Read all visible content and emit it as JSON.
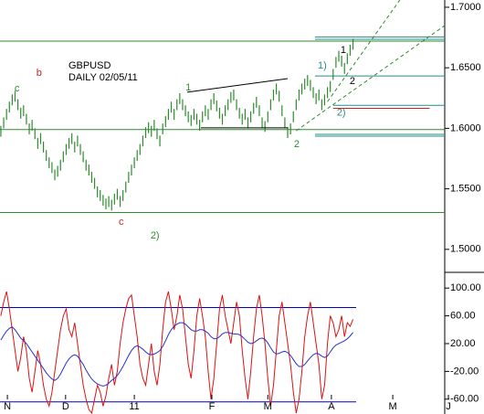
{
  "chart_data": [
    {
      "type": "hilo",
      "xlim": [
        -0.3,
        156.3
      ],
      "ylim": [
        1.481,
        1.706
      ],
      "yticks": [
        {
          "value": 1.7,
          "label": "1.7000"
        },
        {
          "value": 1.65,
          "label": "1.6500"
        },
        {
          "value": 1.6,
          "label": "1.6000"
        },
        {
          "value": 1.55,
          "label": "1.5500"
        },
        {
          "value": 1.5,
          "label": "1.5000"
        }
      ],
      "color": "#2e8b2e",
      "high": [
        1.602,
        1.609,
        1.616,
        1.622,
        1.628,
        1.631,
        1.624,
        1.617,
        1.619,
        1.612,
        1.604,
        1.607,
        1.6,
        1.592,
        1.596,
        1.589,
        1.582,
        1.576,
        1.572,
        1.566,
        1.569,
        1.574,
        1.581,
        1.587,
        1.592,
        1.596,
        1.589,
        1.594,
        1.587,
        1.581,
        1.574,
        1.57,
        1.564,
        1.559,
        1.552,
        1.549,
        1.545,
        1.542,
        1.544,
        1.541,
        1.546,
        1.55,
        1.544,
        1.549,
        1.556,
        1.564,
        1.57,
        1.576,
        1.582,
        1.587,
        1.594,
        1.601,
        1.605,
        1.602,
        1.607,
        1.6,
        1.594,
        1.604,
        1.61,
        1.616,
        1.622,
        1.616,
        1.624,
        1.629,
        1.624,
        1.619,
        1.614,
        1.611,
        1.616,
        1.612,
        1.607,
        1.614,
        1.619,
        1.616,
        1.624,
        1.629,
        1.623,
        1.617,
        1.612,
        1.619,
        1.624,
        1.63,
        1.632,
        1.624,
        1.617,
        1.612,
        1.616,
        1.609,
        1.614,
        1.621,
        1.626,
        1.619,
        1.609,
        1.606,
        1.614,
        1.624,
        1.632,
        1.637,
        1.631,
        1.619,
        1.609,
        1.601,
        1.604,
        1.614,
        1.624,
        1.632,
        1.637,
        1.641,
        1.644,
        1.64,
        1.634,
        1.629,
        1.632,
        1.624,
        1.628,
        1.634,
        1.639,
        1.649,
        1.659,
        1.664,
        1.66,
        1.654,
        1.662,
        1.669,
        1.674
      ],
      "low": [
        1.593,
        1.6,
        1.607,
        1.613,
        1.619,
        1.622,
        1.615,
        1.608,
        1.61,
        1.603,
        1.595,
        1.598,
        1.591,
        1.583,
        1.587,
        1.58,
        1.573,
        1.567,
        1.563,
        1.557,
        1.56,
        1.565,
        1.572,
        1.578,
        1.583,
        1.587,
        1.58,
        1.585,
        1.578,
        1.572,
        1.565,
        1.561,
        1.555,
        1.55,
        1.543,
        1.54,
        1.536,
        1.533,
        1.535,
        1.532,
        1.537,
        1.541,
        1.535,
        1.54,
        1.547,
        1.555,
        1.561,
        1.567,
        1.573,
        1.578,
        1.585,
        1.592,
        1.596,
        1.593,
        1.598,
        1.591,
        1.585,
        1.595,
        1.601,
        1.607,
        1.613,
        1.607,
        1.615,
        1.62,
        1.615,
        1.61,
        1.605,
        1.602,
        1.607,
        1.603,
        1.598,
        1.605,
        1.61,
        1.607,
        1.615,
        1.62,
        1.614,
        1.608,
        1.603,
        1.61,
        1.615,
        1.621,
        1.623,
        1.615,
        1.608,
        1.603,
        1.607,
        1.6,
        1.605,
        1.612,
        1.617,
        1.61,
        1.6,
        1.597,
        1.605,
        1.615,
        1.623,
        1.628,
        1.622,
        1.61,
        1.6,
        1.592,
        1.595,
        1.605,
        1.615,
        1.623,
        1.628,
        1.632,
        1.635,
        1.631,
        1.625,
        1.62,
        1.623,
        1.615,
        1.619,
        1.625,
        1.63,
        1.64,
        1.65,
        1.655,
        1.651,
        1.645,
        1.653,
        1.66,
        1.665
      ],
      "levels": [
        {
          "value": 1.672,
          "color": "#2e8b2e",
          "from": -0.3,
          "to": 156.3
        },
        {
          "value": 1.599,
          "color": "#2e8b2e",
          "from": -0.3,
          "to": 156.3
        },
        {
          "value": 1.5305,
          "color": "#2e8b2e",
          "from": -0.3,
          "to": 156.3
        },
        {
          "value": 1.6755,
          "color": "#2a8a8a",
          "from": 110.6,
          "to": 156.3
        },
        {
          "value": 1.6735,
          "color": "#2a8a8a",
          "from": 110.6,
          "to": 156.3
        },
        {
          "value": 1.6432,
          "color": "#2a8a8a",
          "from": 110.6,
          "to": 156.3
        },
        {
          "value": 1.619,
          "color": "#2a8a8a",
          "from": 117,
          "to": 156.3
        },
        {
          "value": 1.6165,
          "color": "#cc2222",
          "from": 117,
          "to": 151
        },
        {
          "value": 1.595,
          "color": "#2a8a8a",
          "from": 110.6,
          "to": 156.3
        },
        {
          "value": 1.5935,
          "color": "#2a8a8a",
          "from": 110.6,
          "to": 156.3
        }
      ],
      "trendlines": [
        {
          "x": [
            65.6,
            101
          ],
          "y": [
            1.6298,
            1.6411
          ],
          "color": "#000000",
          "dashed": false
        },
        {
          "x": [
            70.4,
            101
          ],
          "y": [
            1.6004,
            1.6004
          ],
          "color": "#000000",
          "dashed": false
        },
        {
          "x": [
            104,
            156.3
          ],
          "y": [
            1.598,
            1.6849
          ],
          "color": "#2e8b2e",
          "dashed": true
        },
        {
          "x": [
            115,
            140.5
          ],
          "y": [
            1.622,
            1.706
          ],
          "color": "#2e8b2e",
          "dashed": true
        }
      ],
      "annotations": [
        {
          "text": "b",
          "x": 12.5,
          "y": 1.6457,
          "color": "#cc2222"
        },
        {
          "text": "c",
          "x": 4.8,
          "y": 1.6328,
          "color": "#2e8b2e"
        },
        {
          "text": "c",
          "x": 41.5,
          "y": 1.5226,
          "color": "#cc2222"
        },
        {
          "text": "2)",
          "x": 52.7,
          "y": 1.5113,
          "color": "#2e8b2e"
        },
        {
          "text": "GBPUSD",
          "x": 23.8,
          "y": 1.6517,
          "color": "#000000"
        },
        {
          "text": "DAILY 02/05/11",
          "x": 23.8,
          "y": 1.6419,
          "color": "#000000"
        },
        {
          "text": "1",
          "x": 65,
          "y": 1.6336,
          "color": "#2e8b2e"
        },
        {
          "text": "2",
          "x": 103.2,
          "y": 1.5868,
          "color": "#2e8b2e"
        },
        {
          "text": "1)",
          "x": 111.6,
          "y": 1.6517,
          "color": "#2a8a8a"
        },
        {
          "text": "2)",
          "x": 118.3,
          "y": 1.6125,
          "color": "#2a8a8a"
        },
        {
          "text": "1",
          "x": 119.6,
          "y": 1.6645,
          "color": "#000000"
        },
        {
          "text": "2",
          "x": 122.8,
          "y": 1.6389,
          "color": "#000000"
        }
      ]
    },
    {
      "type": "line",
      "xlim": [
        -0.3,
        156.3
      ],
      "ylim": [
        -84,
        120
      ],
      "xticks": [
        {
          "value": 2.3,
          "label": "N"
        },
        {
          "value": 22.8,
          "label": "D"
        },
        {
          "value": 47,
          "label": "11"
        },
        {
          "value": 74.3,
          "label": "F"
        },
        {
          "value": 94,
          "label": "M"
        },
        {
          "value": 116.4,
          "label": "A"
        },
        {
          "value": 138,
          "label": "M"
        },
        {
          "value": 157.6,
          "label": "J"
        }
      ],
      "yticks": [
        {
          "value": 100,
          "label": "100.00"
        },
        {
          "value": 60,
          "label": "60.00"
        },
        {
          "value": 20,
          "label": "20.00"
        },
        {
          "value": -20,
          "label": "-20.00"
        },
        {
          "value": -60,
          "label": "-60.00"
        }
      ],
      "hlines": [
        72,
        -64
      ],
      "hline_color": "#0000cc",
      "series": [
        {
          "color": "#dd1111",
          "values": [
            60,
            80,
            95,
            70,
            40,
            10,
            -20,
            0,
            30,
            10,
            -30,
            -50,
            -20,
            10,
            -10,
            -40,
            -60,
            -70,
            -50,
            -20,
            10,
            40,
            60,
            70,
            40,
            30,
            50,
            20,
            -10,
            -40,
            -60,
            -75,
            -80,
            -60,
            -40,
            -50,
            -70,
            -55,
            -30,
            -10,
            -40,
            -20,
            20,
            50,
            70,
            85,
            90,
            60,
            30,
            -10,
            -30,
            -40,
            -10,
            20,
            -20,
            -40,
            -10,
            40,
            80,
            95,
            70,
            40,
            60,
            90,
            70,
            30,
            -10,
            -30,
            10,
            60,
            85,
            60,
            30,
            -20,
            -60,
            -30,
            20,
            70,
            90,
            60,
            40,
            20,
            50,
            80,
            60,
            10,
            -30,
            -60,
            -20,
            30,
            70,
            90,
            60,
            20,
            -30,
            -70,
            -40,
            10,
            60,
            80,
            50,
            20,
            -10,
            -50,
            -80,
            -60,
            -20,
            30,
            60,
            80,
            50,
            20,
            -10,
            -60,
            -40,
            20,
            60,
            50,
            30,
            40,
            60,
            30,
            50,
            45,
            55
          ]
        },
        {
          "color": "#2233cc",
          "values": [
            25,
            32,
            38,
            42,
            44,
            40,
            34,
            28,
            24,
            20,
            14,
            8,
            2,
            -4,
            -10,
            -16,
            -22,
            -27,
            -31,
            -33,
            -30,
            -24,
            -16,
            -8,
            -2,
            2,
            4,
            2,
            -4,
            -10,
            -18,
            -25,
            -31,
            -35,
            -38,
            -40,
            -41,
            -40,
            -37,
            -33,
            -30,
            -26,
            -20,
            -13,
            -5,
            3,
            10,
            15,
            17,
            15,
            12,
            8,
            5,
            4,
            5,
            7,
            10,
            16,
            24,
            33,
            40,
            45,
            48,
            50,
            50,
            48,
            44,
            40,
            38,
            38,
            40,
            40,
            38,
            35,
            30,
            27,
            27,
            30,
            34,
            36,
            36,
            35,
            34,
            34,
            33,
            30,
            26,
            22,
            20,
            21,
            24,
            27,
            28,
            26,
            21,
            14,
            8,
            5,
            6,
            8,
            9,
            7,
            3,
            -3,
            -9,
            -13,
            -13,
            -10,
            -5,
            0,
            4,
            6,
            5,
            2,
            0,
            2,
            8,
            14,
            18,
            20,
            22,
            24,
            27,
            31,
            36
          ]
        }
      ]
    }
  ]
}
